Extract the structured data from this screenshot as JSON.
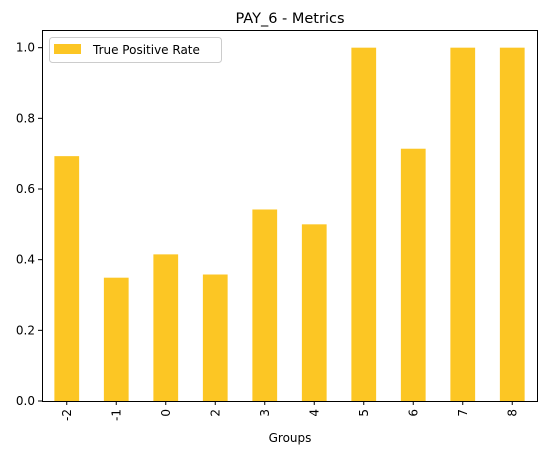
{
  "chart_data": {
    "type": "bar",
    "title": "PAY_6 - Metrics",
    "xlabel": "Groups",
    "ylabel": "",
    "categories": [
      "-2",
      "-1",
      "0",
      "2",
      "3",
      "4",
      "5",
      "6",
      "7",
      "8"
    ],
    "series": [
      {
        "name": "True Positive Rate",
        "values": [
          0.693,
          0.349,
          0.415,
          0.358,
          0.542,
          0.5,
          1.0,
          0.714,
          1.0,
          1.0
        ],
        "color": "#fcc624"
      }
    ],
    "ylim": [
      0,
      1.05
    ],
    "yticks": [
      "0.0",
      "0.2",
      "0.4",
      "0.6",
      "0.8",
      "1.0"
    ],
    "xtick_rotation": "vertical",
    "grid": false,
    "legend_position": "upper left"
  }
}
